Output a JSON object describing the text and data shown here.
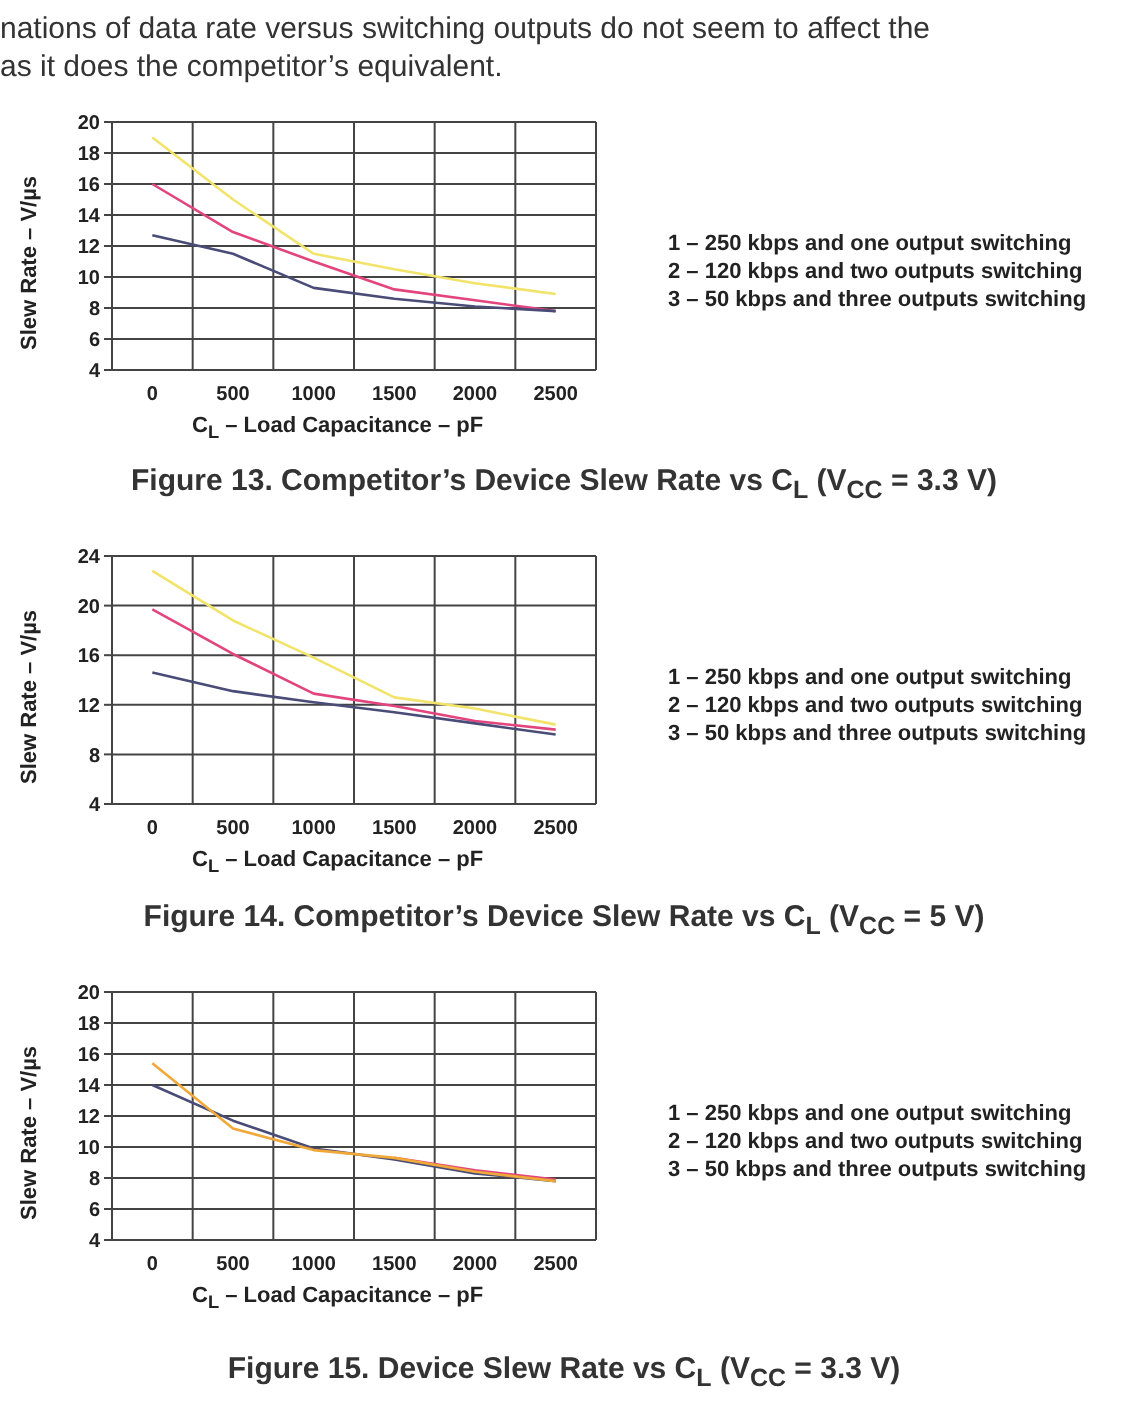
{
  "chart_data": [
    {
      "type": "line",
      "subtitle": "nations of data rate versus switching outputs do not seem to affect the\nas it does the competitor’s equivalent.",
      "title": "Figure 13.  Competitor’s Device Slew Rate vs C$_{L}$ (V$_{CC}$ = 3.3 V)",
      "xlabel": "C$_{L}$ – Load Capacitance – pF",
      "ylabel": "Slew Rate – V/µs",
      "categories": [
        "0",
        "500",
        "1000",
        "1500",
        "2000",
        "2500"
      ],
      "ylim": [
        4,
        20
      ],
      "yticks": [
        4,
        6,
        8,
        10,
        12,
        14,
        16,
        18,
        20
      ],
      "grid": true,
      "legend": false,
      "marker": "none",
      "line_style": "solid",
      "annotations": [
        "1 – 250 kbps and one output switching",
        "2 – 120 kbps and two outputs switching",
        "3 – 50 kbps and three outputs switching"
      ],
      "series": [
        {
          "color": "#f2e36a",
          "values": [
            19,
            15,
            11.5,
            10.5,
            9.6,
            8.9
          ]
        },
        {
          "color": "#e2457e",
          "values": [
            16,
            12.9,
            11,
            9.2,
            8.5,
            7.8
          ]
        },
        {
          "color": "#4a4c78",
          "values": [
            12.7,
            11.5,
            9.3,
            8.6,
            8.1,
            7.8
          ]
        }
      ]
    },
    {
      "type": "line",
      "title": "Figure 14.  Competitor’s Device Slew Rate vs C$_{L}$ (V$_{CC}$ = 5 V)",
      "xlabel": "C$_{L}$ – Load Capacitance – pF",
      "ylabel": "Slew Rate – V/µs",
      "categories": [
        "0",
        "500",
        "1000",
        "1500",
        "2000",
        "2500"
      ],
      "ylim": [
        4,
        24
      ],
      "yticks": [
        4,
        8,
        12,
        16,
        20,
        24
      ],
      "grid": true,
      "legend": false,
      "marker": "none",
      "line_style": "solid",
      "annotations": [
        "1 – 250 kbps and one output switching",
        "2 – 120 kbps and two outputs switching",
        "3 – 50 kbps and three outputs switching"
      ],
      "series": [
        {
          "color": "#f2e36a",
          "values": [
            22.8,
            18.8,
            15.8,
            12.6,
            11.7,
            10.4
          ]
        },
        {
          "color": "#e2457e",
          "values": [
            19.7,
            16.1,
            12.9,
            11.9,
            10.7,
            10
          ]
        },
        {
          "color": "#4a4c78",
          "values": [
            14.6,
            13.1,
            12.2,
            11.4,
            10.5,
            9.6
          ]
        }
      ]
    },
    {
      "type": "line",
      "title": "Figure 15.  Device Slew Rate vs C$_{L}$ (V$_{CC}$ = 3.3 V)",
      "xlabel": "C$_{L}$ – Load Capacitance – pF",
      "ylabel": "Slew Rate – V/µs",
      "categories": [
        "0",
        "500",
        "1000",
        "1500",
        "2000",
        "2500"
      ],
      "ylim": [
        4,
        20
      ],
      "yticks": [
        4,
        6,
        8,
        10,
        12,
        14,
        16,
        18,
        20
      ],
      "grid": true,
      "legend": false,
      "marker": "none",
      "line_style": "solid",
      "annotations": [
        "1 – 250 kbps and one output switching",
        "2 – 120 kbps and two outputs switching",
        "3 – 50 kbps and three outputs switching"
      ],
      "series": [
        {
          "color": "#e2457e",
          "values": [
            null,
            null,
            null,
            9.3,
            8.5,
            7.9
          ]
        },
        {
          "color": "#4a4c78",
          "values": [
            14,
            11.7,
            9.9,
            9.2,
            8.3,
            7.8
          ]
        },
        {
          "color": "#f0a838",
          "values": [
            15.4,
            11.2,
            9.8,
            9.3,
            8.4,
            7.8
          ]
        }
      ]
    }
  ]
}
